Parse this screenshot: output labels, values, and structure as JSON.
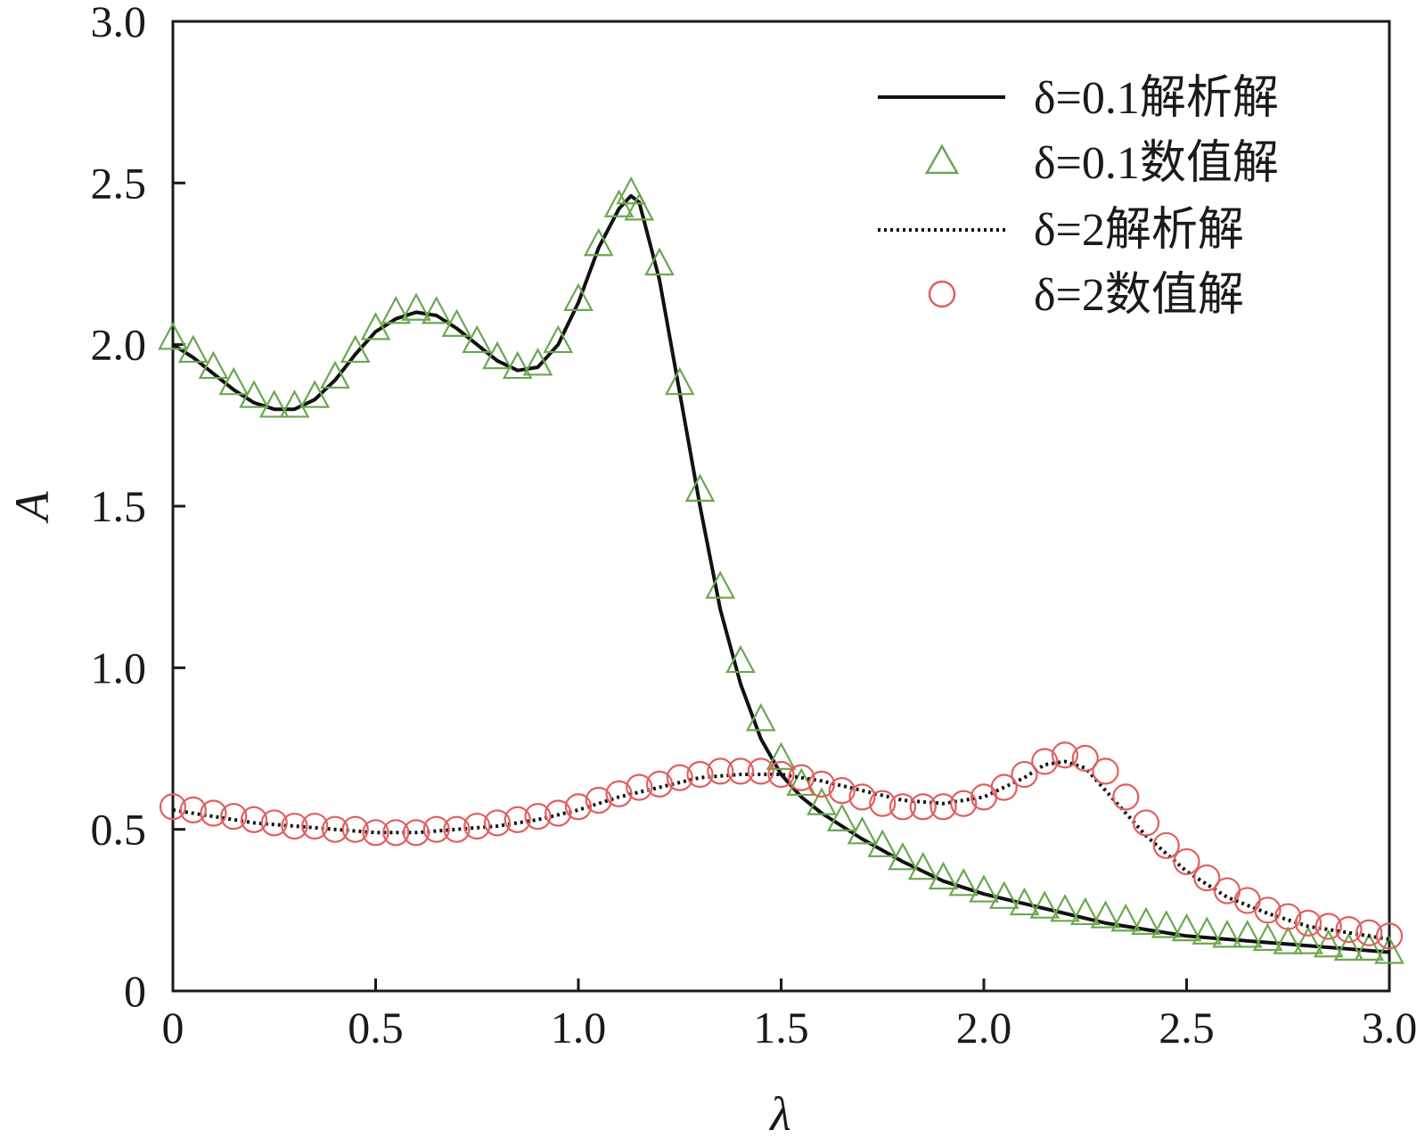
{
  "chart_data": {
    "type": "line",
    "xlabel": "λ",
    "ylabel": "A",
    "xlim": [
      0,
      3.0
    ],
    "ylim": [
      0,
      3.0
    ],
    "x_ticks": [
      "0",
      "0.5",
      "1.0",
      "1.5",
      "2.0",
      "2.5",
      "3.0"
    ],
    "y_ticks": [
      "0",
      "0.5",
      "1.0",
      "1.5",
      "2.0",
      "2.5",
      "3.0"
    ],
    "grid": false,
    "legend_position": "top-right",
    "series": [
      {
        "name": "δ=0.1解析解",
        "style": "solid-line",
        "color": "#111111",
        "x": [
          0.0,
          0.05,
          0.1,
          0.15,
          0.2,
          0.25,
          0.3,
          0.35,
          0.4,
          0.45,
          0.5,
          0.55,
          0.6,
          0.65,
          0.7,
          0.75,
          0.8,
          0.85,
          0.9,
          0.95,
          1.0,
          1.05,
          1.1,
          1.13,
          1.15,
          1.2,
          1.25,
          1.3,
          1.35,
          1.4,
          1.45,
          1.5,
          1.55,
          1.6,
          1.7,
          1.8,
          1.9,
          2.0,
          2.1,
          2.2,
          2.3,
          2.4,
          2.5,
          2.6,
          2.7,
          2.8,
          2.9,
          3.0
        ],
        "values": [
          2.0,
          1.96,
          1.91,
          1.86,
          1.82,
          1.8,
          1.8,
          1.83,
          1.89,
          1.97,
          2.04,
          2.08,
          2.1,
          2.09,
          2.05,
          2.0,
          1.95,
          1.92,
          1.93,
          2.0,
          2.13,
          2.3,
          2.42,
          2.46,
          2.44,
          2.2,
          1.85,
          1.5,
          1.18,
          0.95,
          0.78,
          0.67,
          0.6,
          0.55,
          0.47,
          0.4,
          0.34,
          0.3,
          0.27,
          0.24,
          0.21,
          0.19,
          0.17,
          0.16,
          0.15,
          0.14,
          0.13,
          0.12
        ]
      },
      {
        "name": "δ=0.1数值解",
        "style": "triangle-markers",
        "color": "#6aa84f",
        "x": [
          0.0,
          0.05,
          0.1,
          0.15,
          0.2,
          0.25,
          0.3,
          0.35,
          0.4,
          0.45,
          0.5,
          0.55,
          0.6,
          0.65,
          0.7,
          0.75,
          0.8,
          0.85,
          0.9,
          0.95,
          1.0,
          1.05,
          1.1,
          1.13,
          1.15,
          1.2,
          1.25,
          1.3,
          1.35,
          1.4,
          1.45,
          1.5,
          1.55,
          1.6,
          1.65,
          1.7,
          1.75,
          1.8,
          1.85,
          1.9,
          1.95,
          2.0,
          2.05,
          2.1,
          2.15,
          2.2,
          2.25,
          2.3,
          2.35,
          2.4,
          2.45,
          2.5,
          2.55,
          2.6,
          2.65,
          2.7,
          2.75,
          2.8,
          2.85,
          2.9,
          2.95,
          3.0
        ],
        "values": [
          2.02,
          1.98,
          1.93,
          1.88,
          1.84,
          1.81,
          1.81,
          1.84,
          1.9,
          1.98,
          2.05,
          2.1,
          2.11,
          2.1,
          2.06,
          2.01,
          1.96,
          1.93,
          1.94,
          2.01,
          2.14,
          2.31,
          2.43,
          2.47,
          2.42,
          2.25,
          1.88,
          1.55,
          1.25,
          1.02,
          0.84,
          0.72,
          0.64,
          0.58,
          0.53,
          0.49,
          0.45,
          0.41,
          0.38,
          0.35,
          0.33,
          0.31,
          0.29,
          0.27,
          0.26,
          0.25,
          0.24,
          0.23,
          0.22,
          0.21,
          0.2,
          0.19,
          0.18,
          0.17,
          0.17,
          0.16,
          0.15,
          0.15,
          0.14,
          0.13,
          0.13,
          0.12
        ]
      },
      {
        "name": "δ=2解析解",
        "style": "dotted-line",
        "color": "#111111",
        "x": [
          0.0,
          0.1,
          0.2,
          0.3,
          0.4,
          0.5,
          0.6,
          0.7,
          0.8,
          0.9,
          1.0,
          1.1,
          1.2,
          1.3,
          1.4,
          1.5,
          1.6,
          1.7,
          1.8,
          1.9,
          2.0,
          2.1,
          2.15,
          2.2,
          2.25,
          2.3,
          2.4,
          2.5,
          2.6,
          2.7,
          2.8,
          2.9,
          3.0
        ],
        "values": [
          0.56,
          0.54,
          0.52,
          0.51,
          0.5,
          0.49,
          0.49,
          0.5,
          0.51,
          0.53,
          0.56,
          0.6,
          0.63,
          0.66,
          0.67,
          0.67,
          0.65,
          0.62,
          0.59,
          0.58,
          0.6,
          0.66,
          0.7,
          0.71,
          0.69,
          0.62,
          0.48,
          0.37,
          0.29,
          0.24,
          0.2,
          0.18,
          0.16
        ]
      },
      {
        "name": "δ=2数值解",
        "style": "circle-markers",
        "color": "#e06060",
        "x": [
          0.0,
          0.05,
          0.1,
          0.15,
          0.2,
          0.25,
          0.3,
          0.35,
          0.4,
          0.45,
          0.5,
          0.55,
          0.6,
          0.65,
          0.7,
          0.75,
          0.8,
          0.85,
          0.9,
          0.95,
          1.0,
          1.05,
          1.1,
          1.15,
          1.2,
          1.25,
          1.3,
          1.35,
          1.4,
          1.45,
          1.5,
          1.55,
          1.6,
          1.65,
          1.7,
          1.75,
          1.8,
          1.85,
          1.9,
          1.95,
          2.0,
          2.05,
          2.1,
          2.15,
          2.2,
          2.25,
          2.3,
          2.35,
          2.4,
          2.45,
          2.5,
          2.55,
          2.6,
          2.65,
          2.7,
          2.75,
          2.8,
          2.85,
          2.9,
          2.95,
          3.0
        ],
        "values": [
          0.57,
          0.56,
          0.55,
          0.54,
          0.53,
          0.52,
          0.51,
          0.51,
          0.5,
          0.5,
          0.49,
          0.49,
          0.49,
          0.5,
          0.5,
          0.51,
          0.52,
          0.53,
          0.54,
          0.55,
          0.57,
          0.59,
          0.61,
          0.63,
          0.64,
          0.66,
          0.67,
          0.68,
          0.68,
          0.68,
          0.67,
          0.66,
          0.64,
          0.62,
          0.6,
          0.58,
          0.57,
          0.57,
          0.57,
          0.58,
          0.6,
          0.63,
          0.67,
          0.71,
          0.73,
          0.72,
          0.68,
          0.6,
          0.52,
          0.45,
          0.4,
          0.35,
          0.31,
          0.28,
          0.25,
          0.23,
          0.21,
          0.2,
          0.19,
          0.18,
          0.17
        ]
      }
    ]
  }
}
